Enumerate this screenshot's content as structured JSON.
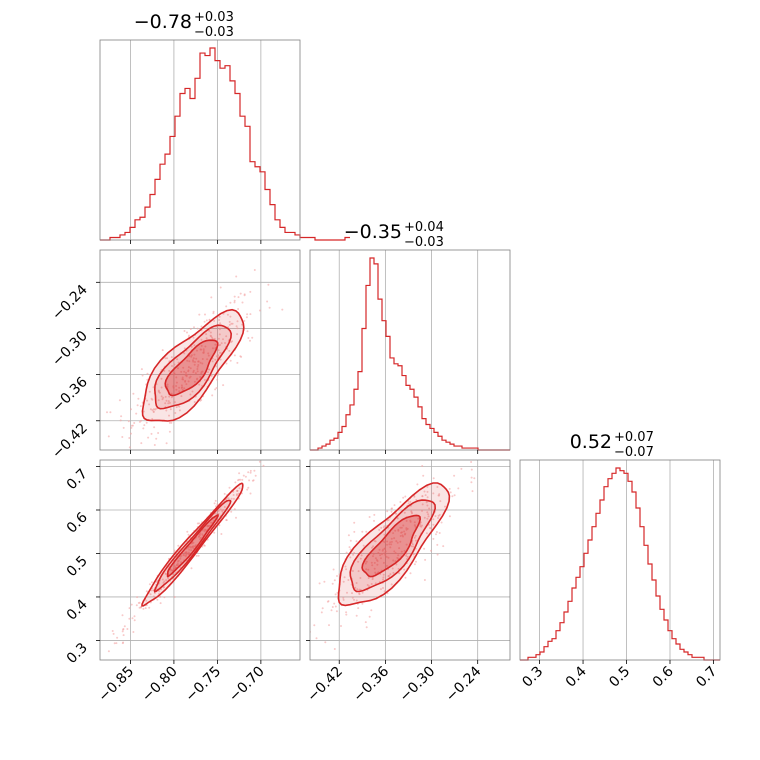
{
  "chart_data": {
    "type": "corner",
    "color": "#d62728",
    "parameters": [
      {
        "median": "−0.78",
        "plus": "+0.03",
        "minus": "−0.03",
        "range": [
          -0.885,
          -0.655
        ],
        "ticks": [
          -0.85,
          -0.8,
          -0.75,
          -0.7
        ],
        "tick_labels": [
          "−0.85",
          "−0.80",
          "−0.75",
          "−0.70"
        ]
      },
      {
        "median": "−0.35",
        "plus": "+0.04",
        "minus": "−0.03",
        "range": [
          -0.458,
          -0.198
        ],
        "ticks": [
          -0.42,
          -0.36,
          -0.3,
          -0.24
        ],
        "tick_labels": [
          "−0.42",
          "−0.36",
          "−0.30",
          "−0.24"
        ]
      },
      {
        "median": "0.52",
        "plus": "+0.07",
        "minus": "−0.07",
        "range": [
          0.255,
          0.715
        ],
        "ticks": [
          0.3,
          0.4,
          0.5,
          0.6,
          0.7
        ],
        "tick_labels": [
          "0.3",
          "0.4",
          "0.5",
          "0.6",
          "0.7"
        ]
      }
    ],
    "histograms": [
      {
        "param": 0,
        "bin_start": -0.885,
        "bin_width": 0.00575,
        "counts": [
          0,
          0,
          1,
          1,
          2,
          3,
          5,
          8,
          9,
          13,
          18,
          24,
          30,
          34,
          41,
          49,
          58,
          60,
          56,
          64,
          74,
          73,
          76,
          71,
          68,
          69,
          63,
          58,
          49,
          45,
          31,
          29,
          27,
          20,
          14,
          8,
          5,
          3,
          3,
          2,
          1,
          1,
          1,
          0,
          0,
          0,
          0,
          0,
          0,
          1
        ]
      },
      {
        "param": 1,
        "bin_start": -0.458,
        "bin_width": 0.0052,
        "counts": [
          0,
          0,
          1,
          2,
          3,
          5,
          6,
          9,
          12,
          18,
          23,
          31,
          40,
          62,
          84,
          98,
          95,
          77,
          66,
          58,
          47,
          44,
          43,
          38,
          33,
          31,
          27,
          22,
          16,
          13,
          11,
          9,
          7,
          5,
          4,
          3,
          2,
          2,
          1,
          1,
          1,
          1,
          0,
          0,
          0,
          0,
          0,
          0,
          0,
          0
        ]
      },
      {
        "param": 2,
        "bin_start": 0.255,
        "bin_width": 0.0092,
        "counts": [
          0,
          0,
          1,
          1,
          2,
          3,
          5,
          7,
          8,
          11,
          14,
          18,
          22,
          27,
          31,
          35,
          40,
          45,
          50,
          55,
          60,
          65,
          68,
          70,
          72,
          71,
          70,
          67,
          63,
          57,
          50,
          43,
          36,
          30,
          24,
          19,
          15,
          11,
          8,
          6,
          4,
          3,
          2,
          1,
          1,
          1,
          0,
          0,
          0,
          0
        ]
      }
    ],
    "joint": [
      {
        "x": 0,
        "y": 1,
        "mean": [
          -0.78,
          -0.352
        ],
        "sd": [
          0.029,
          0.036
        ],
        "rho": 0.76
      },
      {
        "x": 0,
        "y": 2,
        "mean": [
          -0.78,
          0.515
        ],
        "sd": [
          0.029,
          0.07
        ],
        "rho": 0.98
      },
      {
        "x": 1,
        "y": 2,
        "mean": [
          -0.352,
          0.515
        ],
        "sd": [
          0.036,
          0.07
        ],
        "rho": 0.8
      }
    ],
    "contour_levels_sigma": [
      1.0,
      1.5,
      2.0
    ],
    "grid": true
  }
}
